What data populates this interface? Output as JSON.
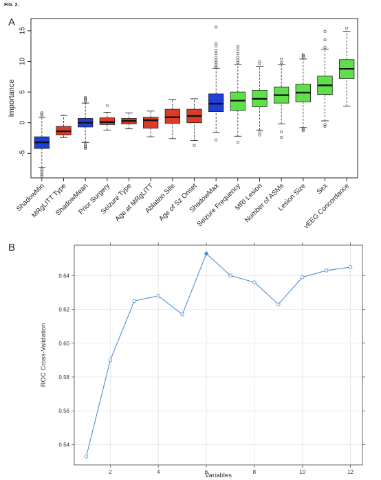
{
  "figure_label": "FIG. 2.",
  "panels": {
    "a_label": "A",
    "b_label": "B"
  },
  "chart_data": [
    {
      "type": "boxplot",
      "ylabel": "Importance",
      "xlabel": "",
      "ylim": [
        -9,
        17
      ],
      "yticks": [
        -5,
        0,
        5,
        10,
        15
      ],
      "grid": false,
      "colors": {
        "blue": "#1f3fd9",
        "red": "#dd3b26",
        "green": "#5fe04a"
      },
      "categories": [
        "ShadowMin",
        "MRgLITT Type",
        "ShadowMean",
        "Prior Surgery",
        "Seizure Type",
        "Age at MRgLITT",
        "Ablation Site",
        "Age of Sz Onset",
        "ShadowMax",
        "Seizure Frequency",
        "MRI Lesion",
        "Number of ASMs",
        "Lesion Size",
        "Sex",
        "vEEG Concordance"
      ],
      "boxes": [
        {
          "color": "blue",
          "whisker_low": -7.3,
          "q1": -4.2,
          "median": -3.2,
          "q3": -2.3,
          "whisker_high": 0.9,
          "outliers": [
            -7.6,
            -7.9,
            -8.2,
            -8.5,
            -8.8,
            1.1,
            1.4,
            1.6
          ]
        },
        {
          "color": "red",
          "whisker_low": -2.4,
          "q1": -2.0,
          "median": -1.4,
          "q3": -0.6,
          "whisker_high": 1.2,
          "outliers": []
        },
        {
          "color": "blue",
          "whisker_low": -3.2,
          "q1": -0.7,
          "median": 0.0,
          "q3": 0.7,
          "whisker_high": 3.2,
          "outliers": [
            -3.5,
            -3.8,
            -4.0,
            -4.2,
            3.5,
            3.7,
            3.9,
            4.1
          ]
        },
        {
          "color": "red",
          "whisker_low": -1.2,
          "q1": -0.3,
          "median": 0.1,
          "q3": 0.8,
          "whisker_high": 1.7,
          "outliers": [
            2.8
          ]
        },
        {
          "color": "red",
          "whisker_low": -1.0,
          "q1": -0.2,
          "median": 0.3,
          "q3": 0.7,
          "whisker_high": 1.6,
          "outliers": []
        },
        {
          "color": "red",
          "whisker_low": -2.3,
          "q1": -0.9,
          "median": 0.4,
          "q3": 0.9,
          "whisker_high": 1.9,
          "outliers": []
        },
        {
          "color": "red",
          "whisker_low": -2.6,
          "q1": -0.1,
          "median": 0.9,
          "q3": 2.2,
          "whisker_high": 3.8,
          "outliers": []
        },
        {
          "color": "red",
          "whisker_low": -2.9,
          "q1": 0.0,
          "median": 1.1,
          "q3": 2.2,
          "whisker_high": 3.9,
          "outliers": [
            -3.7
          ]
        },
        {
          "color": "blue",
          "whisker_low": -1.6,
          "q1": 1.8,
          "median": 3.1,
          "q3": 4.7,
          "whisker_high": 8.9,
          "outliers": [
            -2.8,
            9.1,
            9.4,
            9.8,
            10.2,
            10.7,
            11.3,
            11.8,
            12.5,
            13.0,
            15.6
          ]
        },
        {
          "color": "green",
          "whisker_low": -2.2,
          "q1": 2.0,
          "median": 3.6,
          "q3": 5.0,
          "whisker_high": 9.5,
          "outliers": [
            -3.2,
            9.8,
            10.2,
            10.7,
            11.3,
            11.9,
            12.4
          ]
        },
        {
          "color": "green",
          "whisker_low": -1.2,
          "q1": 2.6,
          "median": 3.9,
          "q3": 5.3,
          "whisker_high": 9.2,
          "outliers": [
            -1.5,
            -2.0,
            9.6,
            10.0
          ]
        },
        {
          "color": "green",
          "whisker_low": -0.2,
          "q1": 3.2,
          "median": 4.5,
          "q3": 5.8,
          "whisker_high": 9.5,
          "outliers": [
            -1.5,
            -2.4,
            9.8,
            10.4
          ]
        },
        {
          "color": "green",
          "whisker_low": -0.8,
          "q1": 3.4,
          "median": 4.9,
          "q3": 6.3,
          "whisker_high": 10.4,
          "outliers": [
            -1.1,
            -1.3,
            10.7,
            10.9,
            11.1
          ]
        },
        {
          "color": "green",
          "whisker_low": 0.3,
          "q1": 4.6,
          "median": 6.1,
          "q3": 7.6,
          "whisker_high": 12.0,
          "outliers": [
            -0.3,
            -0.6,
            12.3,
            13.5,
            14.9
          ]
        },
        {
          "color": "green",
          "whisker_low": 2.7,
          "q1": 7.2,
          "median": 8.8,
          "q3": 10.3,
          "whisker_high": 14.9,
          "outliers": [
            15.4
          ]
        }
      ]
    },
    {
      "type": "line",
      "xlabel": "Variables",
      "ylabel": "ROC Cross-Validation",
      "xlim": [
        0.5,
        12.5
      ],
      "ylim": [
        0.528,
        0.658
      ],
      "xticks": [
        2,
        4,
        6,
        8,
        10,
        12
      ],
      "yticks": [
        "0.54",
        "0.56",
        "0.58",
        "0.60",
        "0.62",
        "0.64"
      ],
      "grid": true,
      "line_color": "#4a90d9",
      "x": [
        1,
        2,
        3,
        4,
        5,
        6,
        7,
        8,
        9,
        10,
        11,
        12
      ],
      "y": [
        0.533,
        0.59,
        0.625,
        0.628,
        0.617,
        0.653,
        0.64,
        0.636,
        0.623,
        0.639,
        0.643,
        0.645
      ],
      "highlight_index": 5
    }
  ]
}
